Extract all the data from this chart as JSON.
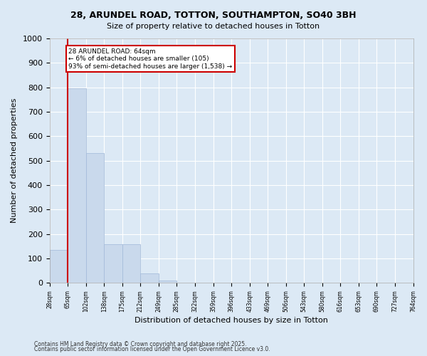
{
  "title_line1": "28, ARUNDEL ROAD, TOTTON, SOUTHAMPTON, SO40 3BH",
  "title_line2": "Size of property relative to detached houses in Totton",
  "xlabel": "Distribution of detached houses by size in Totton",
  "ylabel": "Number of detached properties",
  "bar_values": [
    135,
    795,
    530,
    160,
    160,
    38,
    10,
    0,
    0,
    0,
    0,
    0,
    0,
    0,
    0,
    0,
    0,
    0,
    0,
    0
  ],
  "categories": [
    "28sqm",
    "65sqm",
    "102sqm",
    "138sqm",
    "175sqm",
    "212sqm",
    "249sqm",
    "285sqm",
    "322sqm",
    "359sqm",
    "396sqm",
    "433sqm",
    "469sqm",
    "506sqm",
    "543sqm",
    "580sqm",
    "616sqm",
    "653sqm",
    "690sqm",
    "727sqm",
    "764sqm"
  ],
  "bar_color": "#c9d9ec",
  "bar_edge_color": "#a0b8d8",
  "annotation_box_text": "28 ARUNDEL ROAD: 64sqm\n← 6% of detached houses are smaller (105)\n93% of semi-detached houses are larger (1,538) →",
  "annotation_box_color": "#cc0000",
  "vertical_line_x": 1,
  "ylim": [
    0,
    1000
  ],
  "yticks": [
    0,
    100,
    200,
    300,
    400,
    500,
    600,
    700,
    800,
    900,
    1000
  ],
  "footer_line1": "Contains HM Land Registry data © Crown copyright and database right 2025.",
  "footer_line2": "Contains public sector information licensed under the Open Government Licence v3.0.",
  "background_color": "#dce9f5",
  "plot_bg_color": "#dce9f5",
  "grid_color": "#ffffff"
}
